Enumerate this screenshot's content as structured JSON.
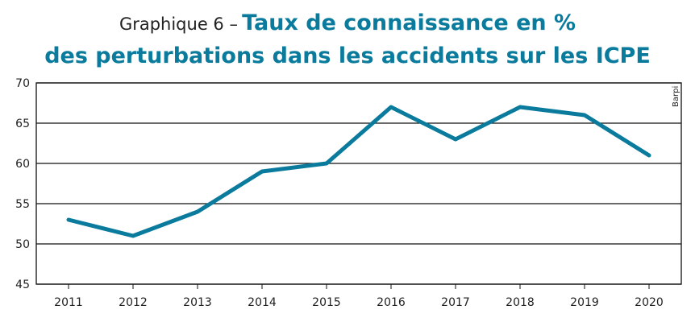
{
  "chart_data": {
    "type": "line",
    "title_prefix": "Graphique 6 –",
    "title_line1": "Taux de connaissance en %",
    "title_line2": "des perturbations dans les accidents sur les ICPE",
    "source": "Barpi",
    "categories": [
      "2011",
      "2012",
      "2013",
      "2014",
      "2015",
      "2016",
      "2017",
      "2018",
      "2019",
      "2020"
    ],
    "values": [
      53,
      51,
      54,
      59,
      60,
      67,
      63,
      67,
      66,
      61
    ],
    "ylim": [
      45,
      70
    ],
    "yticks": [
      45,
      50,
      55,
      60,
      65,
      70
    ],
    "grid": true,
    "xlabel": "",
    "ylabel": "",
    "color": "#0a7b9c"
  }
}
